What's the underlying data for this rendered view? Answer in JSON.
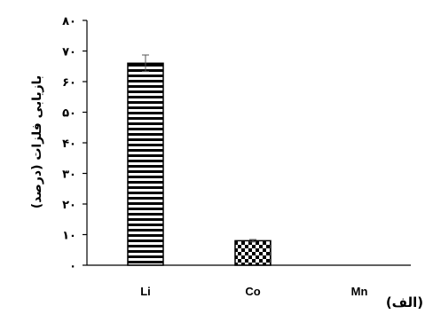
{
  "chart_data": {
    "type": "bar",
    "categories": [
      "Li",
      "Co",
      "Mn"
    ],
    "series": [
      {
        "values": [
          66,
          8,
          0
        ],
        "error": [
          2.7,
          0.4,
          0
        ]
      }
    ],
    "bar_patterns": [
      "horizontal-lines",
      "checkerboard",
      "none"
    ],
    "ylabel": "بازیابی فلزات (درصد)",
    "ylim": [
      0,
      80
    ],
    "yticks": [
      0,
      10,
      20,
      30,
      40,
      50,
      60,
      70,
      80
    ],
    "ytick_labels": [
      "٠",
      "١٠",
      "٢٠",
      "٣٠",
      "۴٠",
      "۵٠",
      "۶٠",
      "٧٠",
      "٨٠"
    ],
    "grid": false,
    "panel_label": "(الف)"
  }
}
